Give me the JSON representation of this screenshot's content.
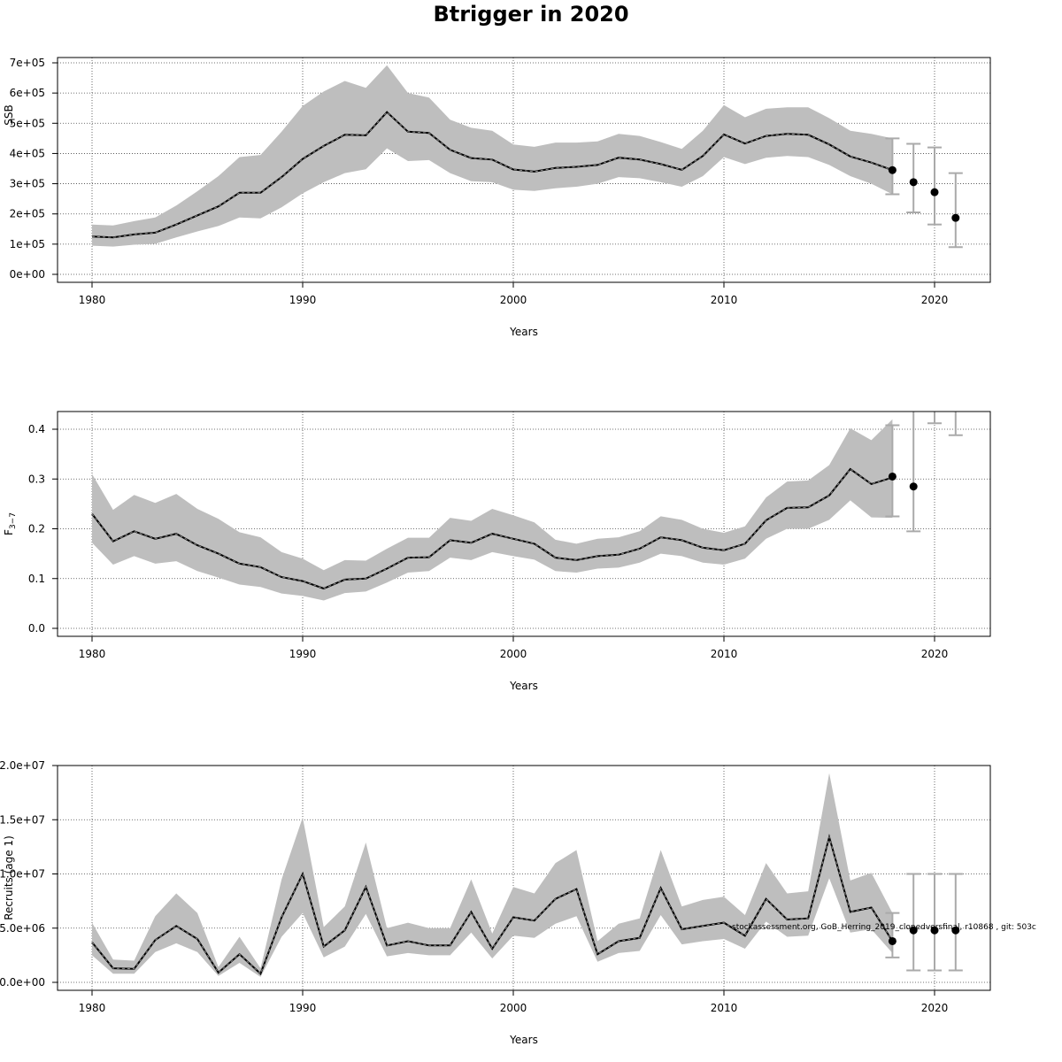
{
  "page": {
    "title": "Btrigger in 2020"
  },
  "footnote": "stockassessment.org, GoB_Herring_2019_clonedversfinal, r10868 , git: 503c",
  "colors": {
    "band": "#bebebe",
    "line": "#000000",
    "grid": "#444444",
    "errorbar": "#aaaaaa"
  },
  "chart_data": [
    {
      "type": "line",
      "ylabel": "SSB",
      "xlabel": "Years",
      "xlim": [
        1980,
        2021
      ],
      "ylim": [
        0,
        700000
      ],
      "xticks": [
        1980,
        1990,
        2000,
        2010,
        2020
      ],
      "xtick_labels": [
        "1980",
        "1990",
        "2000",
        "2010",
        "2020"
      ],
      "yticks": [
        0,
        100000,
        200000,
        300000,
        400000,
        500000,
        600000,
        700000
      ],
      "ytick_labels": [
        "0e+00",
        "1e+05",
        "2e+05",
        "3e+05",
        "4e+05",
        "5e+05",
        "6e+05",
        "7e+05"
      ],
      "grid": true,
      "x": [
        1980,
        1981,
        1982,
        1983,
        1984,
        1985,
        1986,
        1987,
        1988,
        1989,
        1990,
        1991,
        1992,
        1993,
        1994,
        1995,
        1996,
        1997,
        1998,
        1999,
        2000,
        2001,
        2002,
        2003,
        2004,
        2005,
        2006,
        2007,
        2008,
        2009,
        2010,
        2011,
        2012,
        2013,
        2014,
        2015,
        2016,
        2017,
        2018
      ],
      "estimate": [
        125000,
        122000,
        132000,
        138000,
        165000,
        195000,
        225000,
        270000,
        270000,
        322000,
        382000,
        425000,
        462000,
        460000,
        537000,
        472000,
        468000,
        412000,
        385000,
        380000,
        347000,
        340000,
        352000,
        356000,
        362000,
        386000,
        380000,
        365000,
        346000,
        392000,
        463000,
        433000,
        458000,
        465000,
        462000,
        430000,
        390000,
        370000,
        345000
      ],
      "lower": [
        95000,
        92000,
        98000,
        101000,
        122000,
        142000,
        160000,
        188000,
        185000,
        222000,
        268000,
        305000,
        335000,
        348000,
        417000,
        375000,
        378000,
        335000,
        308000,
        305000,
        280000,
        276000,
        285000,
        290000,
        300000,
        322000,
        318000,
        305000,
        290000,
        325000,
        388000,
        365000,
        386000,
        392000,
        388000,
        362000,
        325000,
        300000,
        265000
      ],
      "upper": [
        165000,
        162000,
        176000,
        188000,
        228000,
        275000,
        325000,
        388000,
        395000,
        472000,
        557000,
        605000,
        640000,
        617000,
        692000,
        600000,
        585000,
        512000,
        485000,
        475000,
        430000,
        422000,
        436000,
        436000,
        440000,
        465000,
        458000,
        438000,
        415000,
        475000,
        560000,
        520000,
        548000,
        553000,
        553000,
        517000,
        475000,
        465000,
        450000
      ],
      "forecast": {
        "x": [
          2018,
          2019,
          2020,
          2021
        ],
        "median": [
          345000,
          305000,
          272000,
          187000
        ],
        "lower": [
          265000,
          205000,
          165000,
          90000
        ],
        "upper": [
          450000,
          432000,
          420000,
          335000
        ]
      }
    },
    {
      "type": "line",
      "ylabel": "F3-7",
      "ylabel_main": "F",
      "ylabel_sub": "3−7",
      "xlabel": "Years",
      "xlim": [
        1980,
        2021
      ],
      "ylim": [
        0,
        0.4
      ],
      "xticks": [
        1980,
        1990,
        2000,
        2010,
        2020
      ],
      "xtick_labels": [
        "1980",
        "1990",
        "2000",
        "2010",
        "2020"
      ],
      "yticks": [
        0,
        0.1,
        0.2,
        0.3,
        0.4
      ],
      "ytick_labels": [
        "0.0",
        "0.1",
        "0.2",
        "0.3",
        "0.4"
      ],
      "grid": true,
      "x": [
        1980,
        1981,
        1982,
        1983,
        1984,
        1985,
        1986,
        1987,
        1988,
        1989,
        1990,
        1991,
        1992,
        1993,
        1994,
        1995,
        1996,
        1997,
        1998,
        1999,
        2000,
        2001,
        2002,
        2003,
        2004,
        2005,
        2006,
        2007,
        2008,
        2009,
        2010,
        2011,
        2012,
        2013,
        2014,
        2015,
        2016,
        2017,
        2018
      ],
      "estimate": [
        0.23,
        0.175,
        0.195,
        0.18,
        0.19,
        0.167,
        0.15,
        0.13,
        0.123,
        0.103,
        0.095,
        0.08,
        0.098,
        0.1,
        0.12,
        0.142,
        0.143,
        0.177,
        0.172,
        0.19,
        0.18,
        0.17,
        0.142,
        0.137,
        0.145,
        0.148,
        0.16,
        0.183,
        0.177,
        0.162,
        0.157,
        0.17,
        0.217,
        0.242,
        0.243,
        0.267,
        0.32,
        0.29,
        0.303
      ],
      "lower": [
        0.172,
        0.128,
        0.145,
        0.13,
        0.135,
        0.115,
        0.102,
        0.088,
        0.083,
        0.07,
        0.065,
        0.056,
        0.071,
        0.074,
        0.092,
        0.112,
        0.115,
        0.142,
        0.137,
        0.153,
        0.145,
        0.138,
        0.115,
        0.112,
        0.12,
        0.122,
        0.132,
        0.15,
        0.145,
        0.132,
        0.128,
        0.14,
        0.18,
        0.2,
        0.2,
        0.218,
        0.257,
        0.223,
        0.222
      ],
      "upper": [
        0.31,
        0.238,
        0.268,
        0.252,
        0.27,
        0.24,
        0.22,
        0.193,
        0.183,
        0.153,
        0.14,
        0.117,
        0.137,
        0.136,
        0.16,
        0.182,
        0.182,
        0.222,
        0.216,
        0.24,
        0.227,
        0.213,
        0.178,
        0.17,
        0.18,
        0.183,
        0.195,
        0.225,
        0.218,
        0.2,
        0.192,
        0.205,
        0.263,
        0.295,
        0.297,
        0.328,
        0.402,
        0.378,
        0.42
      ],
      "forecast": {
        "x": [
          2018,
          2019,
          2020,
          2021
        ],
        "median": [
          0.305,
          0.285,
          null,
          null
        ],
        "lower": [
          0.225,
          0.195,
          0.412,
          0.388
        ],
        "upper": [
          0.408,
          0.46,
          0.46,
          0.46
        ]
      }
    },
    {
      "type": "line",
      "ylabel": "Recruits (age 1)",
      "xlabel": "Years",
      "xlim": [
        1980,
        2021
      ],
      "ylim": [
        0,
        20000000
      ],
      "xticks": [
        1980,
        1990,
        2000,
        2010,
        2020
      ],
      "xtick_labels": [
        "1980",
        "1990",
        "2000",
        "2010",
        "2020"
      ],
      "yticks": [
        0,
        5000000,
        10000000,
        15000000,
        20000000
      ],
      "ytick_labels": [
        "0.0e+00",
        "5.0e+06",
        "1.0e+07",
        "1.5e+07",
        "2.0e+07"
      ],
      "grid": true,
      "x": [
        1980,
        1981,
        1982,
        1983,
        1984,
        1985,
        1986,
        1987,
        1988,
        1989,
        1990,
        1991,
        1992,
        1993,
        1994,
        1995,
        1996,
        1997,
        1998,
        1999,
        2000,
        2001,
        2002,
        2003,
        2004,
        2005,
        2006,
        2007,
        2008,
        2009,
        2010,
        2011,
        2012,
        2013,
        2014,
        2015,
        2016,
        2017,
        2018
      ],
      "estimate": [
        3700000,
        1300000,
        1250000,
        3900000,
        5200000,
        4000000,
        900000,
        2600000,
        800000,
        6000000,
        10000000,
        3300000,
        4800000,
        8800000,
        3400000,
        3800000,
        3400000,
        3400000,
        6500000,
        3100000,
        6000000,
        5700000,
        7700000,
        8600000,
        2600000,
        3800000,
        4100000,
        8700000,
        4900000,
        5200000,
        5500000,
        4300000,
        7700000,
        5800000,
        5900000,
        13400000,
        6500000,
        6900000,
        3800000
      ],
      "lower": [
        2500000,
        800000,
        800000,
        2800000,
        3600000,
        2800000,
        600000,
        1800000,
        500000,
        4200000,
        6400000,
        2300000,
        3300000,
        6300000,
        2400000,
        2700000,
        2500000,
        2500000,
        4600000,
        2200000,
        4300000,
        4100000,
        5400000,
        6100000,
        1900000,
        2700000,
        2900000,
        6200000,
        3500000,
        3800000,
        4000000,
        3100000,
        5600000,
        4200000,
        4300000,
        9600000,
        4600000,
        4900000,
        2700000
      ],
      "upper": [
        5500000,
        2100000,
        2000000,
        6100000,
        8200000,
        6400000,
        1400000,
        4200000,
        1300000,
        9500000,
        15200000,
        5100000,
        7000000,
        12900000,
        5000000,
        5500000,
        5000000,
        5000000,
        9500000,
        4500000,
        8800000,
        8200000,
        11000000,
        12200000,
        3800000,
        5400000,
        5900000,
        12200000,
        7000000,
        7600000,
        7900000,
        6200000,
        11000000,
        8200000,
        8400000,
        19300000,
        9400000,
        10100000,
        6400000
      ],
      "forecast": {
        "x": [
          2018,
          2019,
          2020,
          2021
        ],
        "median": [
          3800000,
          4800000,
          4800000,
          4800000
        ],
        "lower": [
          2300000,
          1100000,
          1100000,
          1100000
        ],
        "upper": [
          6400000,
          10000000,
          10000000,
          10000000
        ]
      }
    }
  ]
}
